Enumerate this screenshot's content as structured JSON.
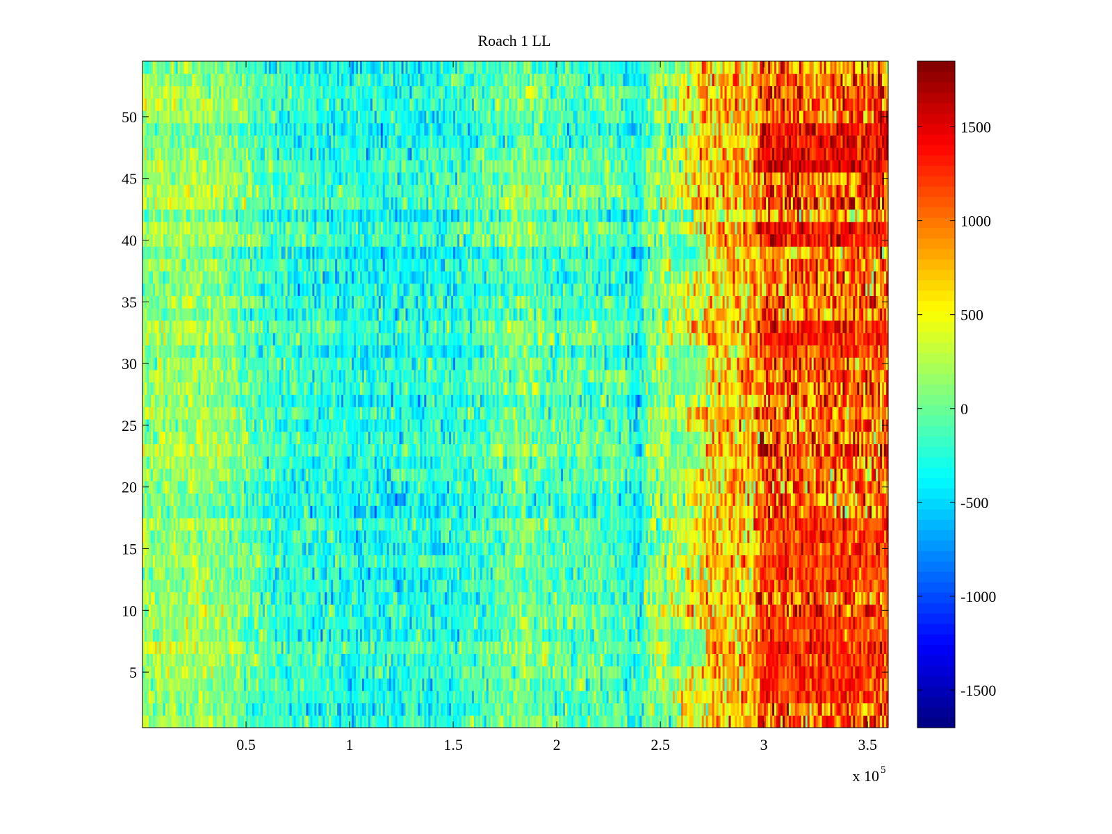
{
  "chart_data": {
    "type": "heatmap",
    "title": "Roach 1 LL",
    "xlabel": "",
    "ylabel": "",
    "colormap": "jet",
    "background": "#ffffff",
    "x_tick_values": [
      50000,
      100000,
      150000,
      200000,
      250000,
      300000,
      350000
    ],
    "x_tick_labels": [
      "0.5",
      "1",
      "1.5",
      "2",
      "2.5",
      "3",
      "3.5"
    ],
    "x_exponent_base": "x 10",
    "x_exponent_power": "5",
    "xlim": [
      0,
      360000
    ],
    "y_tick_values": [
      5,
      10,
      15,
      20,
      25,
      30,
      35,
      40,
      45,
      50
    ],
    "y_tick_labels": [
      "5",
      "10",
      "15",
      "20",
      "25",
      "30",
      "35",
      "40",
      "45",
      "50"
    ],
    "ylim": [
      0.5,
      54.5
    ],
    "rows": 54,
    "clim": [
      -1700,
      1850
    ],
    "colorbar_tick_values": [
      -1500,
      -1000,
      -500,
      0,
      500,
      1000,
      1500
    ],
    "colorbar_tick_labels": [
      "-1500",
      "-1000",
      "-500",
      "0",
      "500",
      "1000",
      "1500"
    ],
    "column_profile": {
      "x": [
        0,
        30000,
        45000,
        60000,
        100000,
        150000,
        185000,
        200000,
        230000,
        240000,
        245000,
        255000,
        272000,
        295000,
        300000,
        320000,
        360000
      ],
      "mean": [
        150,
        180,
        50,
        -150,
        -300,
        -250,
        50,
        -80,
        -100,
        -350,
        100,
        150,
        650,
        750,
        1150,
        1050,
        1000
      ],
      "noise": [
        200,
        200,
        200,
        220,
        230,
        230,
        220,
        230,
        230,
        220,
        250,
        280,
        350,
        350,
        420,
        420,
        420
      ]
    },
    "hot_row_bands": [
      {
        "rows": [
          46,
          49
        ],
        "x_from": 298000,
        "value": 1750
      },
      {
        "rows": [
          40,
          41
        ],
        "x_from": 298000,
        "value": 1550
      },
      {
        "rows": [
          31,
          33
        ],
        "x_from": 298000,
        "value": 1400
      },
      {
        "rows": [
          12,
          17
        ],
        "x_from": 298000,
        "value": 1300
      },
      {
        "rows": [
          3,
          9
        ],
        "x_from": 298000,
        "value": 1350
      }
    ],
    "cool_row_bands": [
      {
        "rows": [
          6,
          8
        ],
        "x_from": 255000,
        "x_to": 272000,
        "value": -350
      },
      {
        "rows": [
          38,
          40
        ],
        "x_from": 255000,
        "x_to": 272000,
        "value": -400
      },
      {
        "rows": [
          22,
          24
        ],
        "x_from": 255000,
        "x_to": 272000,
        "value": -250
      },
      {
        "rows": [
          28,
          31
        ],
        "x_from": 255000,
        "x_to": 272000,
        "value": -200
      }
    ]
  }
}
